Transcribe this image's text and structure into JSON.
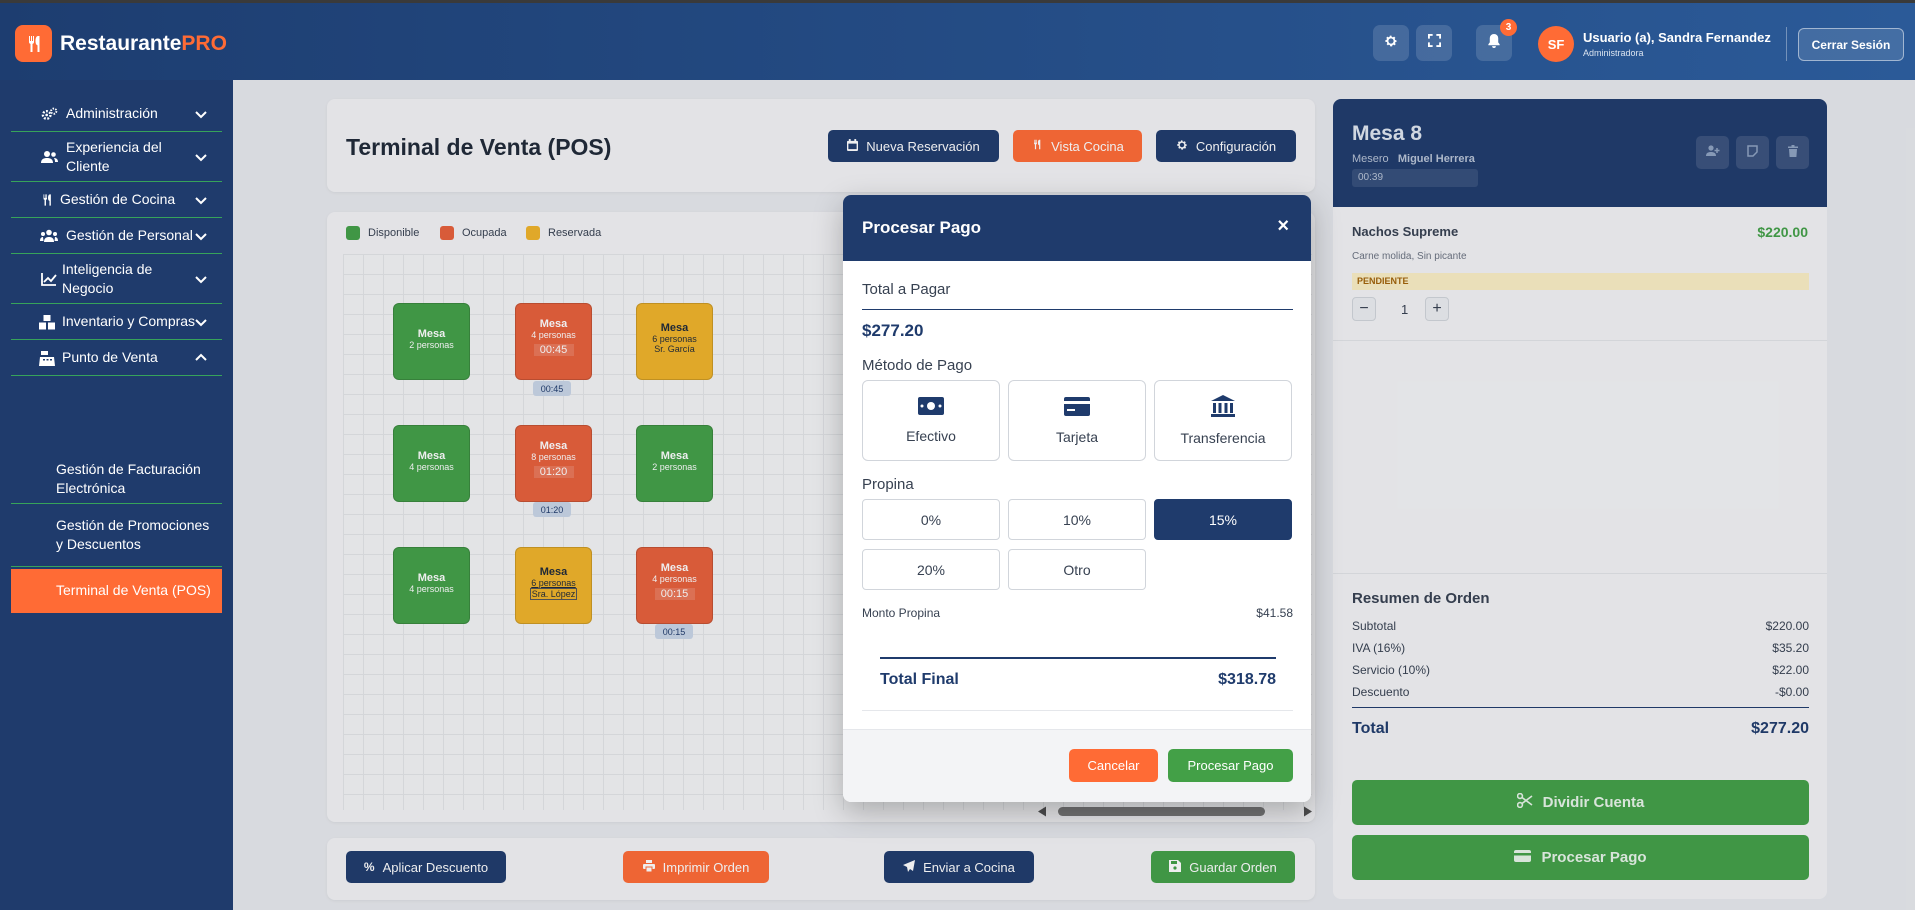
{
  "app": {
    "name_main": "Restaurante",
    "name_accent": "PRO"
  },
  "header": {
    "notifications_count": "3",
    "user_initials": "SF",
    "user_name": "Usuario (a), Sandra Fernandez",
    "user_role": "Administradora",
    "logout_label": "Cerrar Sesión"
  },
  "sidebar": {
    "items": [
      {
        "label": "Administración",
        "icon": "gears-icon"
      },
      {
        "label": "Experiencia del Cliente",
        "icon": "users-icon"
      },
      {
        "label": "Gestión de Cocina",
        "icon": "utensils-icon"
      },
      {
        "label": "Gestión de Personal",
        "icon": "user-group-icon"
      },
      {
        "label": "Inteligencia de Negocio",
        "icon": "chart-line-icon"
      },
      {
        "label": "Inventario y Compras",
        "icon": "boxes-icon"
      },
      {
        "label": "Punto de Venta",
        "icon": "cash-register-icon"
      }
    ],
    "sub_items": [
      {
        "label": "Gestión de Facturación Electrónica"
      },
      {
        "label": "Gestión de Promociones y Descuentos"
      },
      {
        "label": "Terminal de Venta (POS)",
        "active": true
      }
    ]
  },
  "pos": {
    "title": "Terminal de Venta (POS)",
    "buttons": {
      "reservation": "Nueva Reservación",
      "kitchen": "Vista Cocina",
      "config": "Configuración"
    },
    "legend": {
      "available": "Disponible",
      "occupied": "Ocupada",
      "reserved": "Reservada"
    },
    "table_label": "Mesa",
    "tables": [
      {
        "status": "available",
        "people": "2 personas"
      },
      {
        "status": "occupied",
        "people": "4 personas",
        "time": "00:45"
      },
      {
        "status": "reserved",
        "people": "6 personas",
        "guest": "Sr. García"
      },
      {
        "status": "available",
        "people": "4 personas"
      },
      {
        "status": "occupied",
        "people": "8 personas",
        "time": "01:20"
      },
      {
        "status": "available",
        "people": "2 personas"
      },
      {
        "status": "available",
        "people": "4 personas"
      },
      {
        "status": "reserved",
        "people": "6 personas",
        "guest": "Sra. López"
      },
      {
        "status": "occupied",
        "people": "4 personas",
        "time": "00:15"
      }
    ],
    "actions": {
      "discount": "Aplicar Descuento",
      "print": "Imprimir Orden",
      "send": "Enviar a Cocina",
      "save": "Guardar Orden"
    }
  },
  "order": {
    "title": "Mesa 8",
    "waiter_label": "Mesero",
    "waiter": "Miguel Herrera",
    "time": "00:39",
    "item": {
      "name": "Nachos Supreme",
      "price": "$220.00",
      "desc": "Carne molida, Sin picante",
      "status": "PENDIENTE",
      "qty": "1"
    },
    "summary_title": "Resumen de Orden",
    "rows": [
      {
        "label": "Subtotal",
        "value": "$220.00"
      },
      {
        "label": "IVA (16%)",
        "value": "$35.20"
      },
      {
        "label": "Servicio (10%)",
        "value": "$22.00"
      },
      {
        "label": "Descuento",
        "value": "-$0.00"
      }
    ],
    "total_label": "Total",
    "total_value": "$277.20",
    "split_label": "Dividir Cuenta",
    "pay_label": "Procesar Pago"
  },
  "modal": {
    "title": "Procesar Pago",
    "close": "×",
    "total_label": "Total a Pagar",
    "total_value": "$277.20",
    "method_label": "Método de Pago",
    "methods": [
      "Efectivo",
      "Tarjeta",
      "Transferencia"
    ],
    "tip_label": "Propina",
    "tips": [
      "0%",
      "10%",
      "15%",
      "20%",
      "Otro"
    ],
    "tip_selected": "15%",
    "tip_amount_label": "Monto Propina",
    "tip_amount": "$41.58",
    "final_label": "Total Final",
    "final_value": "$318.78",
    "cancel": "Cancelar",
    "confirm": "Procesar Pago"
  },
  "colors": {
    "navy": "#1f3b6c",
    "orange": "#ff6b35",
    "green": "#43a047",
    "yellow": "#f0b429"
  }
}
